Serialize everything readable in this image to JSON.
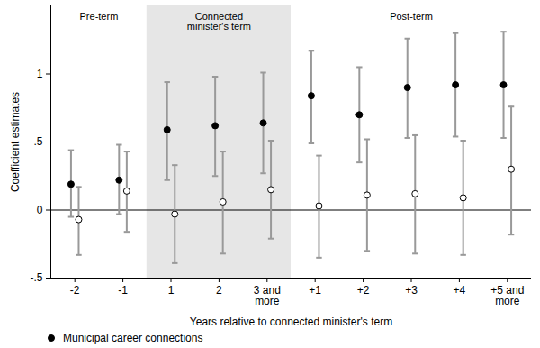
{
  "chart_data": {
    "type": "scatter",
    "x_label": "Years relative to connected minister's term",
    "y_label": "Coefficient estimates",
    "categories": [
      "-2",
      "-1",
      "1",
      "2",
      "3 and more",
      "+1",
      "+2",
      "+3",
      "+4",
      "+5 and more"
    ],
    "periods": [
      {
        "label": "Pre-term",
        "categories": [
          "-2",
          "-1"
        ],
        "shaded": false
      },
      {
        "label": "Connected minister's term",
        "categories": [
          "1",
          "2",
          "3 and more"
        ],
        "shaded": true
      },
      {
        "label": "Post-term",
        "categories": [
          "+1",
          "+2",
          "+3",
          "+4",
          "+5 and more"
        ],
        "shaded": false
      }
    ],
    "series": [
      {
        "name": "Municipal career connections",
        "color": "#000000",
        "marker": "filled_circle",
        "values": [
          0.19,
          0.22,
          0.59,
          0.62,
          0.64,
          0.84,
          0.7,
          0.9,
          0.92,
          0.92
        ],
        "lower": [
          -0.05,
          -0.03,
          0.22,
          0.25,
          0.27,
          0.49,
          0.35,
          0.53,
          0.54,
          0.53
        ],
        "upper": [
          0.44,
          0.48,
          0.94,
          0.98,
          1.01,
          1.17,
          1.05,
          1.26,
          1.3,
          1.31
        ]
      },
      {
        "color": "#000000",
        "marker": "hollow_circle",
        "values": [
          -0.07,
          0.14,
          -0.03,
          0.06,
          0.15,
          0.03,
          0.11,
          0.12,
          0.09,
          0.3
        ],
        "lower": [
          -0.33,
          -0.16,
          -0.39,
          -0.32,
          -0.21,
          -0.35,
          -0.3,
          -0.32,
          -0.33,
          -0.18
        ],
        "upper": [
          0.17,
          0.43,
          0.33,
          0.43,
          0.51,
          0.4,
          0.52,
          0.55,
          0.51,
          0.76
        ]
      }
    ],
    "error_bar_color": "#999999",
    "shade_color": "#e6e6e6",
    "reference_line": 0,
    "ylim": [
      -0.5,
      1.5
    ],
    "yticks": [
      {
        "value": -0.5,
        "label": "-.5"
      },
      {
        "value": 0,
        "label": "0"
      },
      {
        "value": 0.5,
        "label": ".5"
      },
      {
        "value": 1,
        "label": "1"
      }
    ],
    "grid": false,
    "legend": "bottom"
  }
}
